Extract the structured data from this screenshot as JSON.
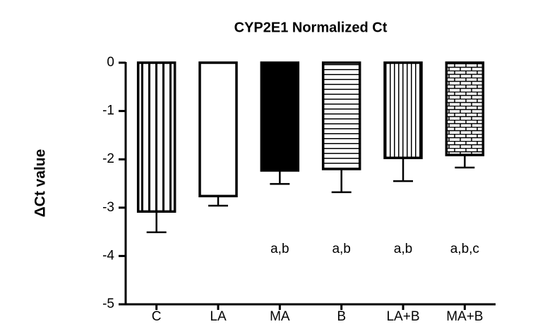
{
  "chart_data": {
    "type": "bar",
    "title": "CYP2E1 Normalized Ct",
    "y_label": "ΔCt value",
    "categories": [
      "C",
      "LA",
      "MA",
      "B",
      "LA+B",
      "MA+B"
    ],
    "values": [
      -3.08,
      -2.76,
      -2.23,
      -2.2,
      -1.97,
      -1.91
    ],
    "errors": [
      0.43,
      0.2,
      0.28,
      0.48,
      0.48,
      0.26
    ],
    "annotations": [
      null,
      null,
      "a,b",
      "a,b",
      "a,b",
      "a,b,c"
    ],
    "patterns": [
      "vertical",
      "none",
      "solid",
      "horizontal",
      "fine-vertical",
      "brick"
    ],
    "color": "#000000",
    "ylim": [
      -5,
      0
    ],
    "yticks": [
      0,
      -1,
      -2,
      -3,
      -4,
      -5
    ],
    "grid": false
  }
}
